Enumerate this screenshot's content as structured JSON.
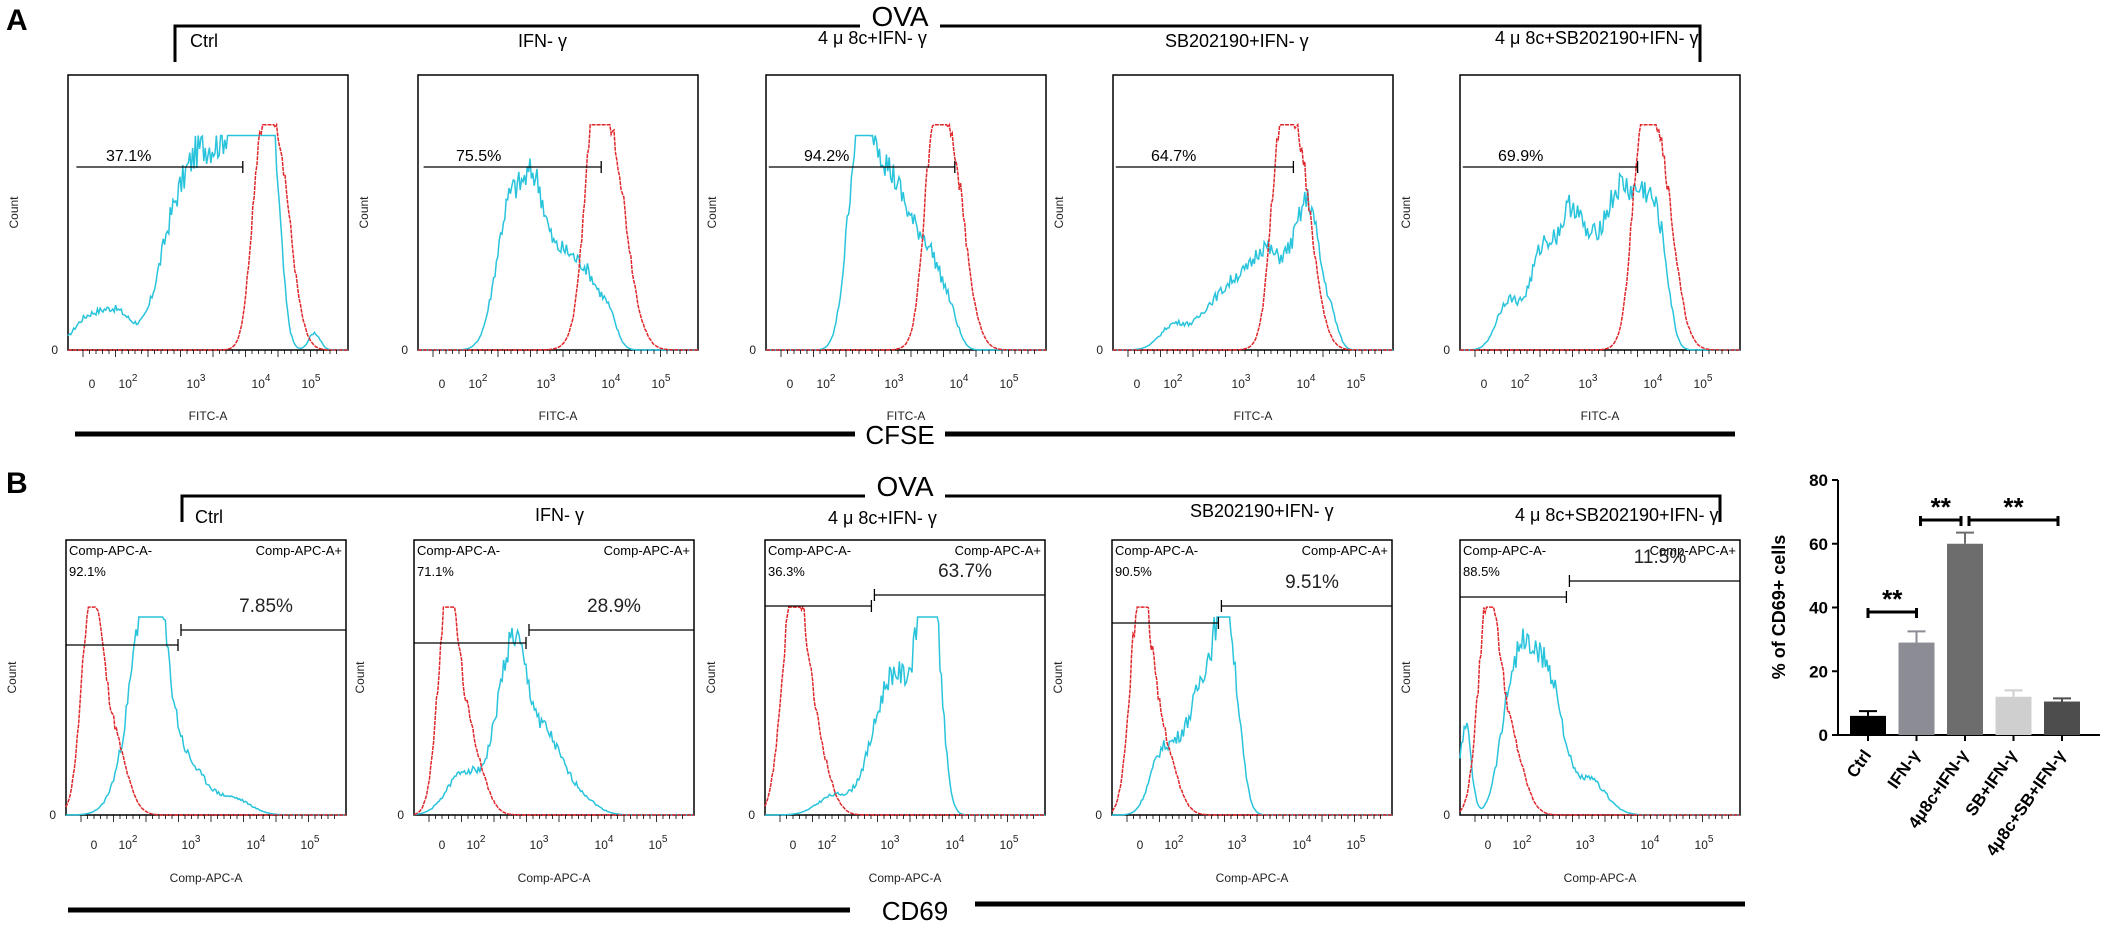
{
  "panel_labels": {
    "a": "A",
    "b": "B"
  },
  "top_group": "OVA",
  "conditions": [
    "Ctrl",
    "IFN- γ",
    "4 μ 8c+IFN- γ",
    "SB202190+IFN- γ",
    "4 μ 8c+SB202190+IFN- γ"
  ],
  "footer": {
    "a": "CFSE",
    "b": "CD69"
  },
  "histograms_a": {
    "x_label": "FITC-A",
    "y_label": "Count",
    "y_zero": "0",
    "x_ticks": [
      "0",
      "10",
      "10",
      "10",
      "10"
    ],
    "x_tick_exps": [
      "",
      "2",
      "3",
      "4",
      "5"
    ],
    "gate_percent": [
      "37.1%",
      "75.5%",
      "94.2%",
      "64.7%",
      "69.9%"
    ],
    "colors": {
      "treated": "#29c4dc",
      "control": "#e0272b"
    }
  },
  "histograms_b": {
    "x_label": "Comp-APC-A",
    "y_label": "Count",
    "y_zero": "0",
    "x_ticks": [
      "0",
      "10",
      "10",
      "10",
      "10"
    ],
    "x_tick_exps": [
      "",
      "2",
      "3",
      "4",
      "5"
    ],
    "neg_label": "Comp-APC-A-",
    "pos_label": "Comp-APC-A+",
    "neg_percent": [
      "92.1%",
      "71.1%",
      "36.3%",
      "90.5%",
      "88.5%"
    ],
    "pos_percent": [
      "7.85%",
      "28.9%",
      "63.7%",
      "9.51%",
      "11.5%"
    ]
  },
  "chart_data": {
    "type": "bar",
    "title": "",
    "ylabel": "% of CD69+ cells",
    "xlabel": "",
    "categories": [
      "Ctrl",
      "IFN-γ",
      "4μ8c+IFN-γ",
      "SB+IFN-γ",
      "4μ8c+SB+IFN-γ"
    ],
    "values": [
      6,
      29,
      60,
      12,
      10.5
    ],
    "errors": [
      1.5,
      3.5,
      3.5,
      2,
      1
    ],
    "bar_colors": [
      "#000000",
      "#8c8c95",
      "#6d6d6d",
      "#cfcfcf",
      "#4d4d4d"
    ],
    "ylim": [
      0,
      80
    ],
    "yticks": [
      "0",
      "20",
      "40",
      "60",
      "80"
    ],
    "significance": [
      "**",
      "**",
      "**"
    ]
  }
}
